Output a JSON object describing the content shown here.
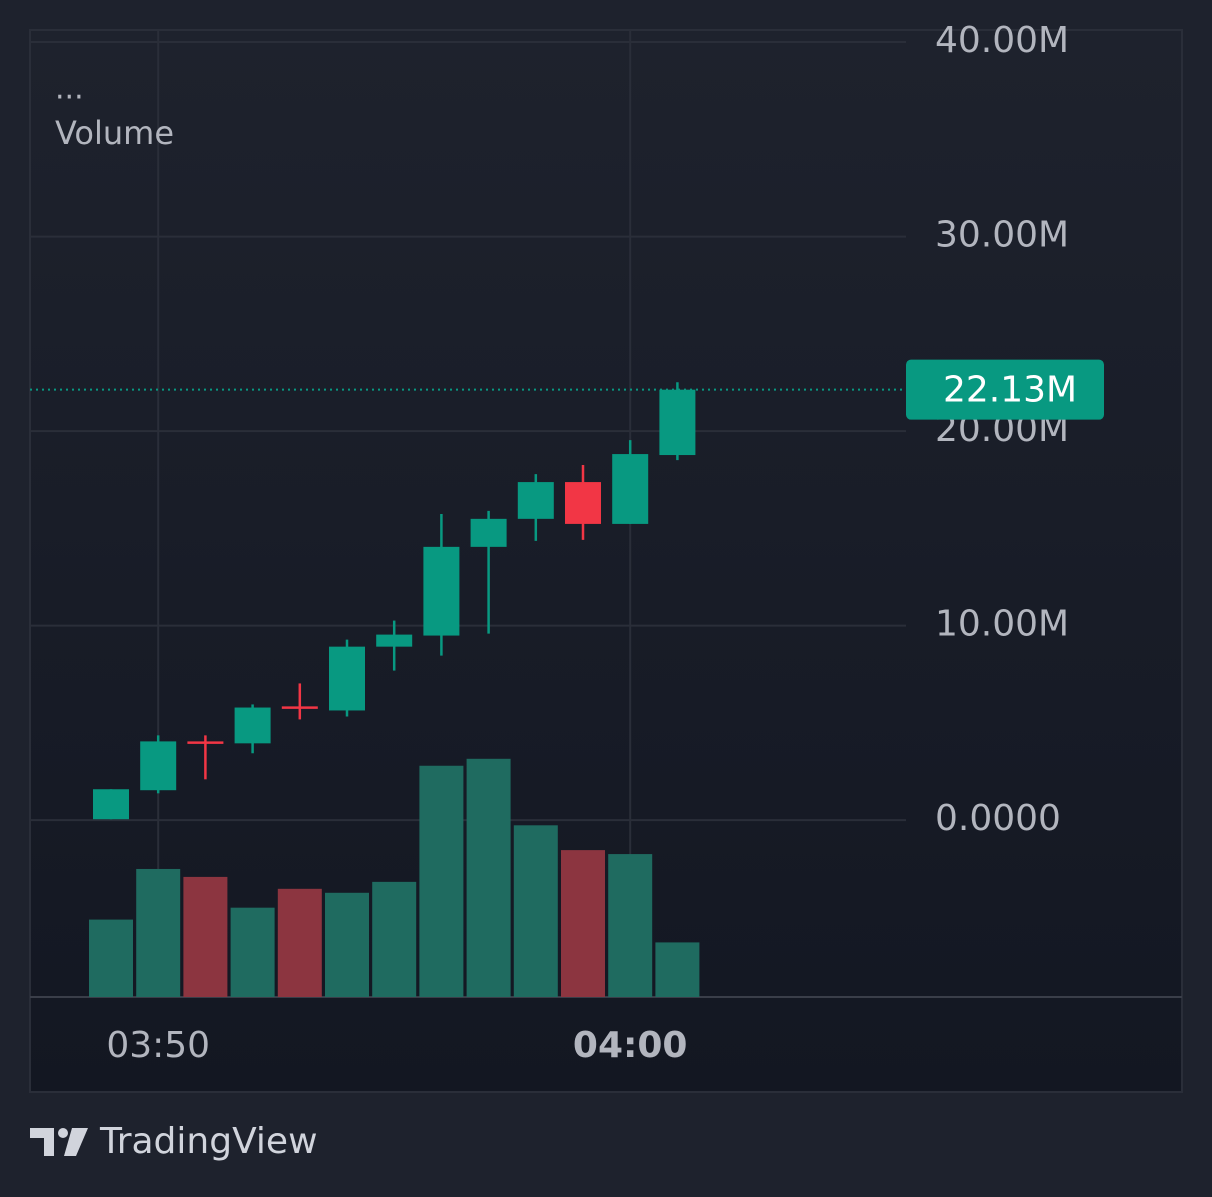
{
  "chart_data": {
    "type": "candlestick",
    "legend_title": "...",
    "volume_label": "Volume",
    "categories": [
      null,
      "03:50",
      null,
      null,
      null,
      null,
      null,
      null,
      null,
      null,
      null,
      "04:00",
      null
    ],
    "open": [
      0.05,
      1.54,
      4.05,
      3.95,
      5.85,
      5.64,
      8.92,
      9.49,
      14.05,
      15.49,
      17.38,
      15.23,
      18.77
    ],
    "high": [
      1.59,
      4.36,
      4.36,
      5.95,
      7.03,
      9.28,
      10.26,
      15.74,
      15.9,
      17.79,
      18.26,
      19.54,
      22.51
    ],
    "low": [
      0.05,
      1.38,
      2.1,
      3.44,
      5.18,
      5.33,
      7.69,
      8.46,
      9.59,
      14.36,
      14.41,
      15.23,
      18.51
    ],
    "close": [
      1.59,
      4.05,
      4.0,
      5.79,
      5.79,
      8.92,
      9.54,
      14.05,
      15.49,
      17.38,
      15.23,
      18.82,
      22.13
    ],
    "volume": [
      78,
      129,
      121,
      90,
      109,
      105,
      116,
      233,
      240,
      173,
      148,
      144,
      55
    ],
    "volume_ylim": [
      0,
      400
    ],
    "ylim": [
      -9.09,
      40.62
    ],
    "yticks": [
      {
        "value": 0,
        "label": "0.0000"
      },
      {
        "value": 10,
        "label": "10.00M"
      },
      {
        "value": 20,
        "label": "20.00M"
      },
      {
        "value": 30,
        "label": "30.00M"
      },
      {
        "value": 40,
        "label": "40.00M"
      }
    ],
    "last_price": {
      "value": 22.13,
      "label": "22.13M"
    },
    "up_color": "#089981",
    "down_color": "#f23645",
    "volume_up_color": "#1f6b60",
    "volume_down_color": "#8c3540",
    "grid": true
  },
  "brand": "TradingView"
}
